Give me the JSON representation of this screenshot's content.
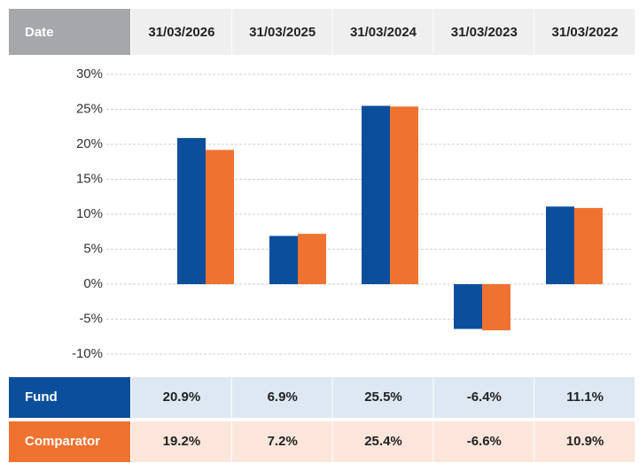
{
  "chart_data": {
    "type": "bar",
    "category_header": "Date",
    "categories": [
      "31/03/2026",
      "31/03/2025",
      "31/03/2024",
      "31/03/2023",
      "31/03/2022"
    ],
    "series": [
      {
        "name": "Fund",
        "color": "#0b4f9c",
        "values": [
          20.9,
          6.9,
          25.5,
          -6.4,
          11.1
        ],
        "value_labels": [
          "20.9%",
          "6.9%",
          "25.5%",
          "-6.4%",
          "11.1%"
        ]
      },
      {
        "name": "Comparator",
        "color": "#f07230",
        "values": [
          19.2,
          7.2,
          25.4,
          -6.6,
          10.9
        ],
        "value_labels": [
          "19.2%",
          "7.2%",
          "25.4%",
          "-6.6%",
          "10.9%"
        ]
      }
    ],
    "ylim": [
      -10,
      30
    ],
    "yticks": [
      {
        "value": 30,
        "label": "30%"
      },
      {
        "value": 25,
        "label": "25%"
      },
      {
        "value": 20,
        "label": "20%"
      },
      {
        "value": 15,
        "label": "15%"
      },
      {
        "value": 10,
        "label": "10%"
      },
      {
        "value": 5,
        "label": "5%"
      },
      {
        "value": 0,
        "label": "0%"
      },
      {
        "value": -5,
        "label": "-5%"
      },
      {
        "value": -10,
        "label": "-10%"
      }
    ],
    "grid": true
  }
}
